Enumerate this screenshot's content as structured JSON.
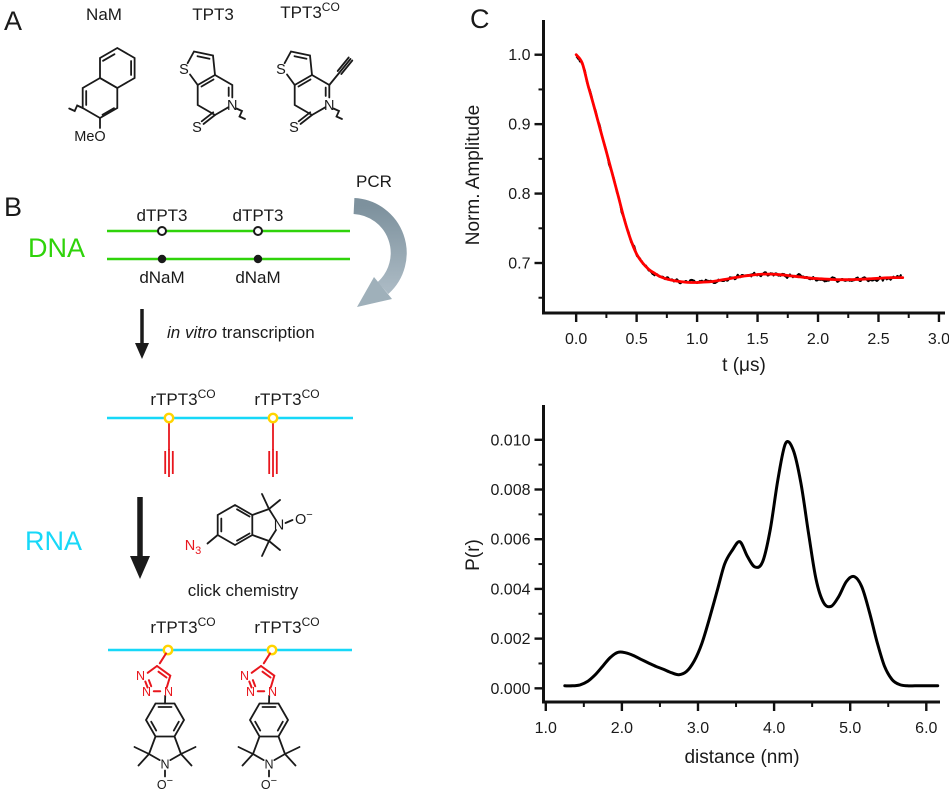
{
  "panel_a": {
    "label": "A",
    "nam": {
      "title": "NaM",
      "meo": "MeO"
    },
    "tpt3": {
      "title": "TPT3"
    },
    "tpt3co": {
      "title": "TPT3",
      "sup": "CO"
    },
    "s": "S",
    "n": "N"
  },
  "panel_b": {
    "label": "B",
    "pcr": "PCR",
    "dna": "DNA",
    "rna": "RNA",
    "dtpt3": "dTPT3",
    "dnam": "dNaM",
    "invitro": "in vitro",
    "transcription": "transcription",
    "click": "click chemistry",
    "rtpt3": "rTPT3",
    "rtpt3_sup": "CO",
    "n": "N",
    "n3_sub": "3",
    "o": "O",
    "minus": "−"
  },
  "panel_c": {
    "label": "C"
  },
  "colors": {
    "dna_green": "#2fd30a",
    "rna_cyan": "#17d8f8",
    "linker_red": "#e8161d",
    "base_yellow": "#ffd400",
    "pcr_arrow_gray": "#93a5af",
    "fit_red": "#ff0000",
    "trace_black": "#000000"
  },
  "chart_data": [
    {
      "name": "deer-time-trace",
      "type": "line",
      "xlabel": "t (μs)",
      "ylabel": "Norm. Amplitude",
      "xlim": [
        -0.27,
        3.05
      ],
      "ylim": [
        0.628,
        1.05
      ],
      "xticks": [
        0.0,
        0.5,
        1.0,
        1.5,
        2.0,
        2.5,
        3.0
      ],
      "xtick_labels": [
        "0.0",
        "0.5",
        "1.0",
        "1.5",
        "2.0",
        "2.5",
        "3.0"
      ],
      "xticks_minor": [
        0.25,
        0.75,
        1.25,
        1.75,
        2.25,
        2.75
      ],
      "yticks": [
        0.7,
        0.8,
        0.9,
        1.0
      ],
      "ytick_labels": [
        "0.7",
        "0.8",
        "0.9",
        "1.0"
      ],
      "yticks_minor": [
        0.65,
        0.75,
        0.85,
        0.95
      ],
      "legend": [],
      "grid": false,
      "series": [
        {
          "name": "experimental",
          "color": "#000000",
          "style": "noisy-from-fit",
          "t_end": 2.69,
          "noise_peak": 0.005
        },
        {
          "name": "fit",
          "color": "#ff0000",
          "style": "smooth",
          "t_start": 0,
          "t_step": 0.05,
          "y": [
            1.0,
            0.988,
            0.955,
            0.924,
            0.892,
            0.86,
            0.828,
            0.795,
            0.762,
            0.734,
            0.713,
            0.7,
            0.691,
            0.685,
            0.68,
            0.677,
            0.675,
            0.6735,
            0.6725,
            0.672,
            0.672,
            0.6725,
            0.673,
            0.674,
            0.6755,
            0.677,
            0.6785,
            0.68,
            0.6815,
            0.6825,
            0.6835,
            0.684,
            0.684,
            0.6838,
            0.683,
            0.682,
            0.681,
            0.68,
            0.679,
            0.678,
            0.6775,
            0.677,
            0.6765,
            0.676,
            0.676,
            0.676,
            0.6762,
            0.6765,
            0.677,
            0.6775,
            0.678,
            0.6785,
            0.6788,
            0.679,
            0.679
          ]
        }
      ]
    },
    {
      "name": "distance-distribution",
      "type": "line",
      "xlabel": "distance (nm)",
      "ylabel": "P(r)",
      "xlim": [
        0.97,
        6.18
      ],
      "ylim": [
        -0.00055,
        0.0114
      ],
      "xticks": [
        1.0,
        2.0,
        3.0,
        4.0,
        5.0,
        6.0
      ],
      "xtick_labels": [
        "1.0",
        "2.0",
        "3.0",
        "4.0",
        "5.0",
        "6.0"
      ],
      "xticks_minor": [
        1.5,
        2.5,
        3.5,
        4.5,
        5.5
      ],
      "yticks": [
        0.0,
        0.002,
        0.004,
        0.006,
        0.008,
        0.01
      ],
      "ytick_labels": [
        "0.000",
        "0.002",
        "0.004",
        "0.006",
        "0.008",
        "0.010"
      ],
      "yticks_minor": [
        0.001,
        0.003,
        0.005,
        0.007,
        0.009
      ],
      "legend": [],
      "grid": false,
      "series": [
        {
          "name": "P(r)",
          "color": "#000000",
          "style": "smooth",
          "x_start": 1.25,
          "x_step": 0.1,
          "y": [
            0.0001,
            0.0001,
            0.00014,
            0.00028,
            0.00055,
            0.0009,
            0.00125,
            0.00145,
            0.00143,
            0.00132,
            0.00117,
            0.00102,
            0.00088,
            0.00076,
            0.00063,
            0.00055,
            0.00068,
            0.0011,
            0.0018,
            0.0028,
            0.0039,
            0.005,
            0.00555,
            0.0059,
            0.0053,
            0.00488,
            0.0051,
            0.0064,
            0.0084,
            0.00985,
            0.0096,
            0.0083,
            0.0063,
            0.0044,
            0.00345,
            0.0033,
            0.0037,
            0.0043,
            0.0045,
            0.0041,
            0.0031,
            0.0019,
            0.0009,
            0.00035,
            0.00015,
            0.0001,
            0.0001,
            0.0001,
            0.0001,
            0.0001
          ]
        }
      ]
    }
  ]
}
